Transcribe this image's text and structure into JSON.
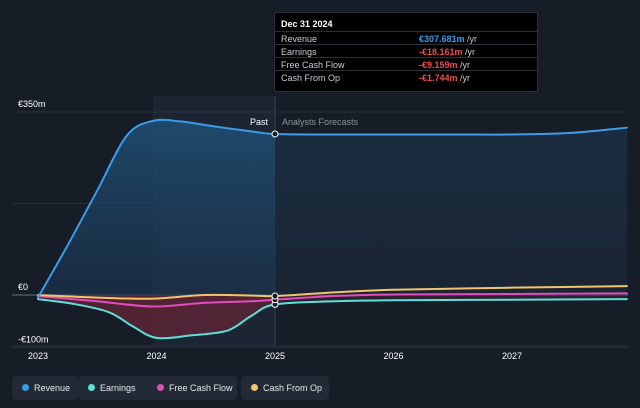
{
  "chart_data": {
    "type": "line",
    "y_axis_labels": [
      "€350m",
      "€0",
      "-€100m"
    ],
    "ylim": [
      -100,
      350
    ],
    "x_ticks": [
      "2023",
      "2024",
      "2025",
      "2026",
      "2027"
    ],
    "regions": {
      "past_label": "Past",
      "forecast_label": "Analysts Forecasts",
      "divider_x": 2025.0
    },
    "grid": true,
    "legend_position": "bottom-left",
    "series": [
      {
        "name": "Revenue",
        "color": "#3d9ce8",
        "x": [
          2023.0,
          2023.25,
          2023.5,
          2023.75,
          2023.97,
          2024.2,
          2024.5,
          2024.8,
          2025.0,
          2025.5,
          2026.0,
          2026.5,
          2027.0,
          2027.5,
          2027.97
        ],
        "y": [
          -5,
          95,
          200,
          305,
          333,
          332,
          322,
          313,
          308,
          307,
          307,
          307,
          307,
          310,
          320
        ]
      },
      {
        "name": "Earnings",
        "color": "#5de0da",
        "x": [
          2023.0,
          2023.3,
          2023.6,
          2023.8,
          2024.0,
          2024.3,
          2024.6,
          2024.8,
          2025.0,
          2025.5,
          2026.0,
          2027.0,
          2027.97
        ],
        "y": [
          -8,
          -17,
          -33,
          -60,
          -82,
          -77,
          -68,
          -40,
          -18,
          -12,
          -10,
          -9,
          -8
        ]
      },
      {
        "name": "Free Cash Flow",
        "color": "#e24cbc",
        "x": [
          2023.0,
          2023.5,
          2023.97,
          2024.4,
          2024.8,
          2025.0,
          2025.5,
          2026.0,
          2027.0,
          2027.97
        ],
        "y": [
          -2,
          -12,
          -22,
          -15,
          -12,
          -9,
          -2,
          1,
          2,
          3
        ]
      },
      {
        "name": "Cash From Op",
        "color": "#f2c46d",
        "x": [
          2023.0,
          2023.5,
          2023.97,
          2024.4,
          2024.8,
          2025.0,
          2025.5,
          2026.0,
          2027.0,
          2027.97
        ],
        "y": [
          0,
          -5,
          -7,
          0,
          -1,
          -2,
          5,
          10,
          14,
          17
        ]
      }
    ]
  },
  "tooltip": {
    "date": "Dec 31 2024",
    "rows": [
      {
        "label": "Revenue",
        "value": "€307.681m",
        "unit": " /yr",
        "color": "#3d9ce8"
      },
      {
        "label": "Earnings",
        "value": "-€18.161m",
        "unit": " /yr",
        "color": "#e84f4f"
      },
      {
        "label": "Free Cash Flow",
        "value": "-€9.159m",
        "unit": " /yr",
        "color": "#e84f4f"
      },
      {
        "label": "Cash From Op",
        "value": "-€1.744m",
        "unit": " /yr",
        "color": "#e84f4f"
      }
    ]
  },
  "legend": [
    {
      "label": "Revenue",
      "color": "#3d9ce8"
    },
    {
      "label": "Earnings",
      "color": "#5de0da"
    },
    {
      "label": "Free Cash Flow",
      "color": "#e24cbc"
    },
    {
      "label": "Cash From Op",
      "color": "#f2c46d"
    }
  ]
}
